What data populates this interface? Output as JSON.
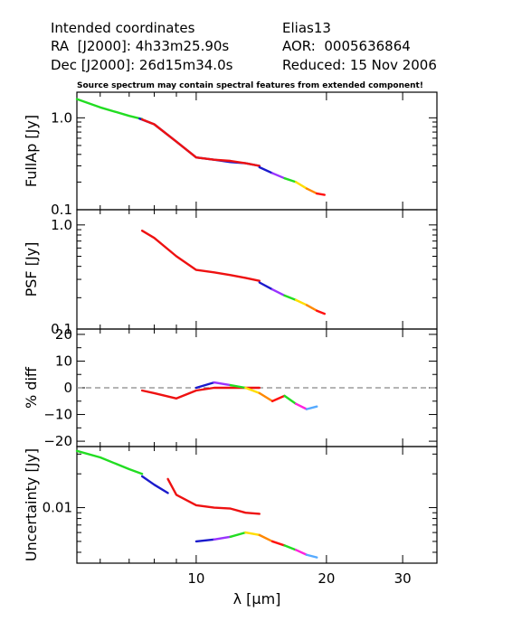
{
  "header": {
    "left": [
      "Intended coordinates",
      "RA  [J2000]: 4h33m25.90s",
      "Dec [J2000]: 26d15m34.0s"
    ],
    "right": [
      "Elias13",
      "AOR:  0005636864",
      "Reduced: 15 Nov 2006"
    ],
    "note": "Source spectrum may contain spectral features from extended component!"
  },
  "chart_data": {
    "type": "line",
    "x_axis": {
      "label": "λ [μm]",
      "scale": "log",
      "range": [
        5.3,
        36
      ],
      "ticks": [
        10,
        20,
        30
      ],
      "tick_labels": [
        "10",
        "20",
        "30"
      ]
    },
    "colors": {
      "SL2": "#22dd22",
      "SL1": "#1a1acc",
      "LL2": "#ee1111",
      "orders": [
        "#1a1acc",
        "#9933ff",
        "#22dd22",
        "#ffdd00",
        "#ff8800",
        "#ff1111",
        "#22dd22",
        "#ff22dd",
        "#55aaff",
        "#ff3399"
      ],
      "dashed": "#888888"
    },
    "panels": [
      {
        "ylabel": "FullAp [Jy]",
        "yscale": "log",
        "yrange": [
          0.1,
          1.9
        ],
        "ytick_values": [
          0.1,
          1.0
        ],
        "ytick_labels": [
          "0.1",
          "1.0"
        ],
        "series": [
          {
            "color_key": "SL2",
            "x": [
              5.3,
              6.0,
              7.0,
              7.5
            ],
            "y": [
              1.6,
              1.3,
              1.05,
              0.97
            ]
          },
          {
            "color_key": "SL1",
            "x": [
              7.4,
              8.0,
              9.0,
              10.0,
              11.0,
              12.0,
              13.0,
              14.0
            ],
            "y": [
              0.98,
              0.85,
              0.55,
              0.37,
              0.35,
              0.33,
              0.32,
              0.3
            ]
          },
          {
            "color_key": "LL2",
            "x": [
              7.5,
              8.0,
              9.0,
              10.0,
              11.0,
              12.0,
              13.0,
              14.0
            ],
            "y": [
              0.96,
              0.85,
              0.55,
              0.37,
              0.35,
              0.34,
              0.32,
              0.3
            ]
          },
          {
            "color_key": "orders",
            "x": [
              14.0,
              15.0,
              16.0,
              17.0,
              18.0,
              19.0,
              19.8
            ],
            "y": [
              0.29,
              0.25,
              0.22,
              0.2,
              0.17,
              0.15,
              0.145
            ]
          }
        ]
      },
      {
        "ylabel": "PSF [Jy]",
        "yscale": "log",
        "yrange": [
          0.1,
          1.4
        ],
        "ytick_values": [
          0.1,
          1.0
        ],
        "ytick_labels": [
          "0.1",
          "1.0"
        ],
        "series": [
          {
            "color_key": "LL2",
            "x": [
              7.5,
              8.0,
              9.0,
              10.0,
              11.0,
              12.0,
              13.0,
              14.0
            ],
            "y": [
              0.88,
              0.75,
              0.5,
              0.37,
              0.35,
              0.33,
              0.31,
              0.29
            ]
          },
          {
            "color_key": "orders",
            "x": [
              14.0,
              15.0,
              16.0,
              17.0,
              18.0,
              19.0,
              19.8
            ],
            "y": [
              0.28,
              0.24,
              0.21,
              0.19,
              0.17,
              0.15,
              0.14
            ]
          }
        ]
      },
      {
        "ylabel": "% diff",
        "yscale": "linear",
        "yrange": [
          -22,
          22
        ],
        "ytick_values": [
          -20,
          -10,
          0,
          10,
          20
        ],
        "ytick_labels": [
          "−20",
          "−10",
          "0",
          "10",
          "20"
        ],
        "dashed_y": 0,
        "series": [
          {
            "color_key": "LL2",
            "x": [
              7.5,
              8.0,
              9.0,
              10.0,
              11.0,
              12.0,
              13.0,
              14.0
            ],
            "y": [
              -1,
              -2,
              -4,
              -1,
              0,
              0,
              0,
              0
            ]
          },
          {
            "color_key": "orders",
            "x": [
              10.0,
              11.0,
              12.0,
              13.0,
              14.0,
              15.0,
              16.0,
              17.0,
              18.0,
              19.0
            ],
            "y": [
              0,
              2,
              1,
              0,
              -2,
              -5,
              -3,
              -6,
              -8,
              -7
            ]
          }
        ]
      },
      {
        "ylabel": "Uncertainty [Jy]",
        "yscale": "log",
        "yrange": [
          0.0032,
          0.035
        ],
        "ytick_values": [
          0.01
        ],
        "ytick_labels": [
          "0.01"
        ],
        "series": [
          {
            "color_key": "SL2",
            "x": [
              5.3,
              6.0,
              7.0,
              7.5
            ],
            "y": [
              0.032,
              0.028,
              0.022,
              0.02
            ]
          },
          {
            "color_key": "SL1",
            "x": [
              7.5,
              8.0,
              8.6
            ],
            "y": [
              0.019,
              0.016,
              0.0135
            ]
          },
          {
            "color_key": "LL2",
            "x": [
              8.6,
              9.0,
              10.0,
              11.0,
              12.0,
              13.0,
              14.0
            ],
            "y": [
              0.018,
              0.013,
              0.0105,
              0.01,
              0.0098,
              0.009,
              0.0088
            ]
          },
          {
            "color_key": "orders",
            "x": [
              10.0,
              11.0,
              12.0,
              13.0,
              14.0,
              15.0,
              16.0,
              17.0,
              18.0,
              19.0
            ],
            "y": [
              0.005,
              0.0052,
              0.0055,
              0.006,
              0.0057,
              0.005,
              0.0046,
              0.0042,
              0.0038,
              0.0036
            ]
          }
        ]
      }
    ]
  }
}
